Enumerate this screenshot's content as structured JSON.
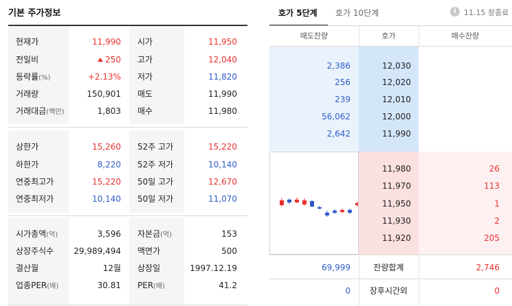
{
  "stock_info": {
    "title": "기본 주가정보",
    "section1": [
      {
        "label": "현재가",
        "value": "11,990",
        "label2": "시가",
        "value2": "11,950"
      },
      {
        "label": "전일비",
        "value": "250",
        "label2": "고가",
        "value2": "12,040"
      },
      {
        "label": "등락률",
        "label_unit": "(%)",
        "value": "+2.13%",
        "label2": "저가",
        "value2": "11,820"
      },
      {
        "label": "거래량",
        "value": "150,901",
        "label2": "매도",
        "value2": "11,990"
      },
      {
        "label": "거래대금",
        "label_unit": "(백만)",
        "value": "1,803",
        "label2": "매수",
        "value2": "11,980"
      }
    ],
    "section2": [
      {
        "label": "상한가",
        "value": "15,260",
        "label2": "52주 고가",
        "value2": "15,220"
      },
      {
        "label": "하한가",
        "value": "8,220",
        "label2": "52주 저가",
        "value2": "10,140"
      },
      {
        "label": "연중최고가",
        "value": "15,220",
        "label2": "50일 고가",
        "value2": "12,670"
      },
      {
        "label": "연중최저가",
        "value": "10,140",
        "label2": "50일 저가",
        "value2": "11,070"
      }
    ],
    "section3": [
      {
        "label": "시가총액",
        "label_unit": "(억)",
        "value": "3,596",
        "label2": "자본금",
        "label2_unit": "(억)",
        "value2": "153"
      },
      {
        "label": "상장주식수",
        "value": "29,989,494",
        "label2": "액면가",
        "value2": "500"
      },
      {
        "label": "결산월",
        "value": "12월",
        "label2": "상장일",
        "value2": "1997.12.19"
      },
      {
        "label": "업종PER",
        "label_unit": "(배)",
        "value": "30.81",
        "label2": "PER",
        "label2_unit": "(배)",
        "value2": "41.2"
      }
    ]
  },
  "orderbook": {
    "tabs": [
      "호가 5단계",
      "호가 10단계"
    ],
    "active_tab": 0,
    "info_icon": "i",
    "timestamp": "11.15 장종료",
    "headers": {
      "sell_qty": "매도잔량",
      "price": "호가",
      "buy_qty": "매수잔량"
    },
    "asks": [
      {
        "qty": "2,386",
        "price": "12,030"
      },
      {
        "qty": "256",
        "price": "12,020"
      },
      {
        "qty": "239",
        "price": "12,010"
      },
      {
        "qty": "56,062",
        "price": "12,000"
      },
      {
        "qty": "2,642",
        "price": "11,990"
      }
    ],
    "bids": [
      {
        "price": "11,980",
        "qty": "26"
      },
      {
        "price": "11,970",
        "qty": "113"
      },
      {
        "price": "11,950",
        "qty": "1"
      },
      {
        "price": "11,930",
        "qty": "2"
      },
      {
        "price": "11,920",
        "qty": "205"
      }
    ],
    "totals": {
      "sell": "69,999",
      "label": "잔량합계",
      "buy": "2,746"
    },
    "after_hours": {
      "sell": "0",
      "label": "장후시간외",
      "buy": "0"
    },
    "mini_chart": {
      "candles": [
        {
          "dir": "up"
        },
        {
          "dir": "down"
        },
        {
          "dir": "up"
        },
        {
          "dir": "up"
        },
        {
          "dir": "down"
        },
        {
          "dir": "down"
        },
        {
          "dir": "down"
        },
        {
          "dir": "down"
        },
        {
          "dir": "up"
        },
        {
          "dir": "down"
        },
        {
          "dir": "up"
        }
      ]
    },
    "colors": {
      "up": "#e9302e",
      "down": "#2f5bc9",
      "ask_bg": "#eaf3fc",
      "ask_price_bg": "#d4e6fa",
      "bid_bg": "#fdf0f0",
      "bid_price_bg": "#fbe0e0"
    }
  }
}
